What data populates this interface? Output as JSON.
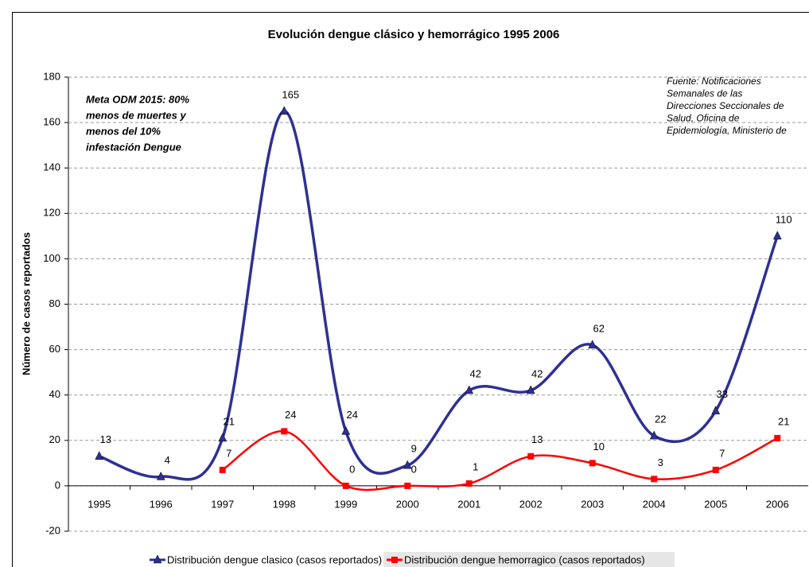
{
  "chart_data": {
    "type": "line",
    "title": "Evolución dengue clásico y hemorrágico 1995 2006",
    "y_label": "Número de casos reportados",
    "annotations": {
      "goal": [
        "Meta ODM 2015: 80%",
        "menos de muertes y",
        "menos del 10%",
        "infestación Dengue"
      ],
      "source": [
        "Fuente: Notificaciones",
        "Semanales de las",
        "Direcciones Seccionales de",
        "Salud, Oficina de",
        "Epidemiología, Ministerio de"
      ]
    },
    "categories": [
      "1995",
      "1996",
      "1997",
      "1998",
      "1999",
      "2000",
      "2001",
      "2002",
      "2003",
      "2004",
      "2005",
      "2006"
    ],
    "series": [
      {
        "name": "Distribución dengue clasico (casos reportados)",
        "color": "#2e3192",
        "marker": "triangle",
        "values": [
          13,
          4,
          21,
          165,
          24,
          9,
          42,
          42,
          62,
          22,
          33,
          110
        ]
      },
      {
        "name": "Distribución dengue hemorragico (casos reportados)",
        "color": "#ff0000",
        "marker": "square",
        "values": [
          null,
          null,
          7,
          24,
          0,
          0,
          1,
          13,
          10,
          3,
          7,
          21
        ]
      }
    ],
    "ylim": [
      -20,
      180
    ],
    "yticks": [
      -20,
      0,
      20,
      40,
      60,
      80,
      100,
      120,
      140,
      160,
      180
    ],
    "grid": true,
    "smooth": true,
    "legend": "bottom"
  }
}
